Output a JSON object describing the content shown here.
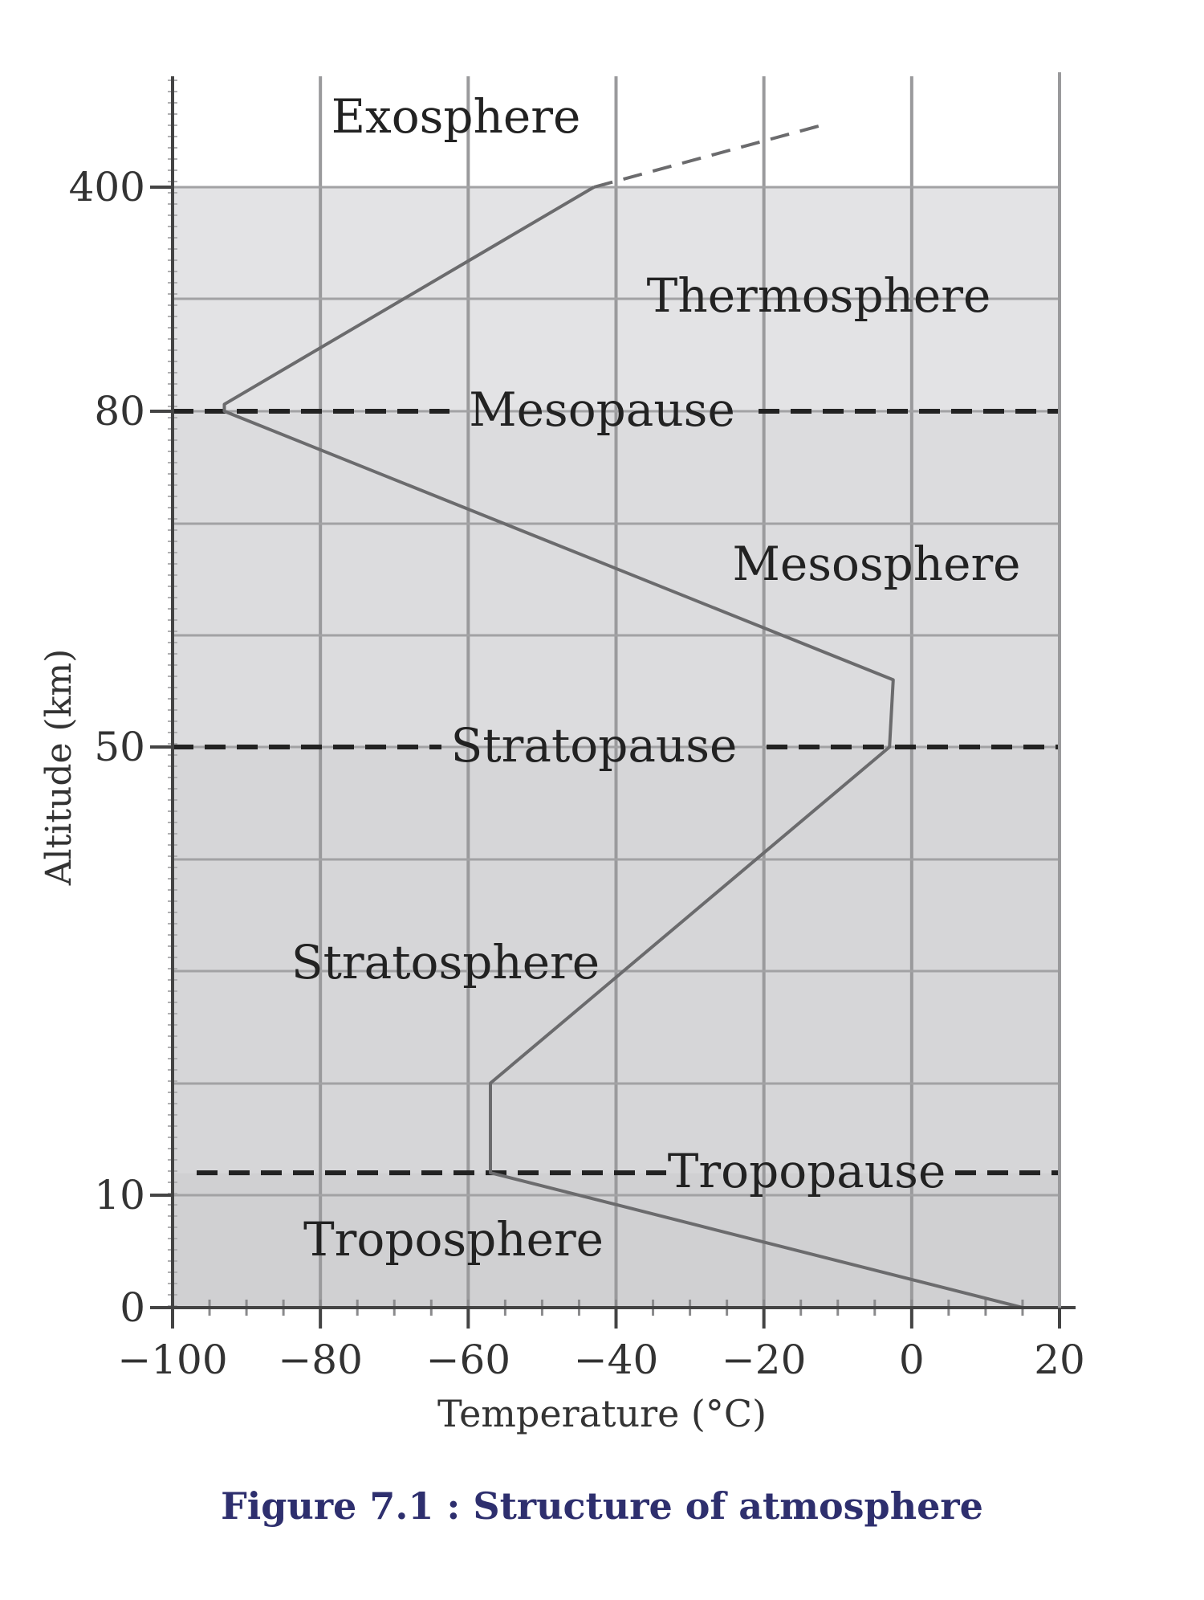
{
  "caption": "Figure 7.1 : Structure of atmosphere",
  "chart_data": {
    "type": "line",
    "xlabel": "Temperature (°C)",
    "ylabel": "Altitude (km)",
    "x_ticks": [
      "−100",
      "−80",
      "−60",
      "−40",
      "−20",
      "0",
      "20"
    ],
    "x_tick_values": [
      -100,
      -80,
      -60,
      -40,
      -20,
      0,
      20
    ],
    "y_ticks": [
      "0",
      "10",
      "50",
      "80",
      "400"
    ],
    "y_tick_values": [
      0,
      10,
      50,
      80,
      400
    ],
    "xlim": [
      -100,
      20
    ],
    "grid": true,
    "series": [
      {
        "points": [
          {
            "x": 15,
            "alt": 0
          },
          {
            "x": -57,
            "alt": 12
          },
          {
            "x": -57,
            "alt": 20
          },
          {
            "x": -3,
            "alt": 50
          },
          {
            "x": -2.5,
            "alt": 56
          },
          {
            "x": -93,
            "alt": 80
          },
          {
            "x": -93,
            "alt": 90
          },
          {
            "x": -43,
            "alt": 400
          }
        ],
        "extension": [
          {
            "x": -43,
            "alt": 400
          },
          {
            "x": -12,
            "alt": 450
          }
        ]
      }
    ],
    "boundaries": [
      {
        "label": "Tropopause",
        "alt": 12
      },
      {
        "label": "Stratopause",
        "alt": 50
      },
      {
        "label": "Mesopause",
        "alt": 80
      }
    ],
    "layers": [
      {
        "label": "Troposphere",
        "shade": "#d0d0d2"
      },
      {
        "label": "Stratosphere",
        "shade": "#d6d6d8"
      },
      {
        "label": "Mesosphere",
        "shade": "#dcdcde"
      },
      {
        "label": "Thermosphere",
        "shade": "#e3e3e5"
      },
      {
        "label": "Exosphere",
        "shade": "#ffffff"
      }
    ]
  }
}
